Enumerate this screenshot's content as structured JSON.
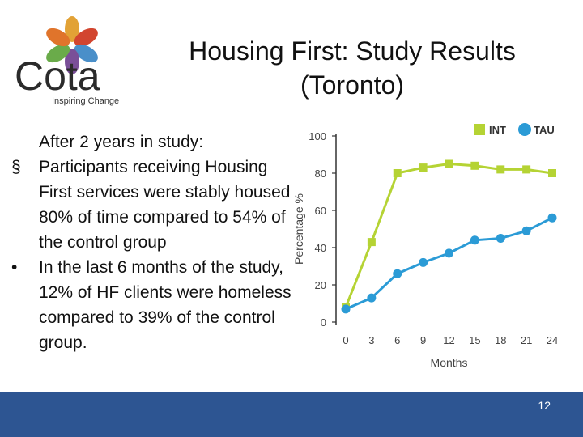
{
  "logo": {
    "name": "Cota",
    "tagline": "Inspiring Change",
    "colors": [
      "#e2a236",
      "#d2452f",
      "#4a8fc9",
      "#7a4f98",
      "#6aab4a",
      "#e0742b"
    ]
  },
  "slide": {
    "title_line1": "Housing First: Study Results",
    "title_line2": "(Toronto)",
    "intro": "After 2 years in study:",
    "bullets": [
      {
        "marker": "§",
        "text": "Participants receiving Housing First services were stably housed 80% of time compared to 54% of the control group"
      },
      {
        "marker": "•",
        "text": "In the last 6 months of the study, 12% of HF clients were homeless compared to 39% of the control group."
      }
    ],
    "page_number": "12"
  },
  "chart_data": {
    "type": "line",
    "x": [
      0,
      3,
      6,
      9,
      12,
      15,
      18,
      21,
      24
    ],
    "series": [
      {
        "name": "INT",
        "color": "#b5d334",
        "marker": "square",
        "values": [
          8,
          43,
          80,
          83,
          85,
          84,
          82,
          82,
          80
        ]
      },
      {
        "name": "TAU",
        "color": "#2b9bd6",
        "marker": "circle",
        "values": [
          7,
          13,
          26,
          32,
          37,
          44,
          45,
          49,
          56
        ]
      }
    ],
    "xlabel": "Months",
    "ylabel": "Percentage %",
    "ylim": [
      0,
      100
    ],
    "yticks": [
      0,
      20,
      40,
      60,
      80,
      100
    ],
    "xticks": [
      "0",
      "3",
      "6",
      "9",
      "12",
      "15",
      "18",
      "21",
      "24"
    ],
    "legend_position": "top-right",
    "grid": false
  },
  "footer_color": "#2d5592"
}
